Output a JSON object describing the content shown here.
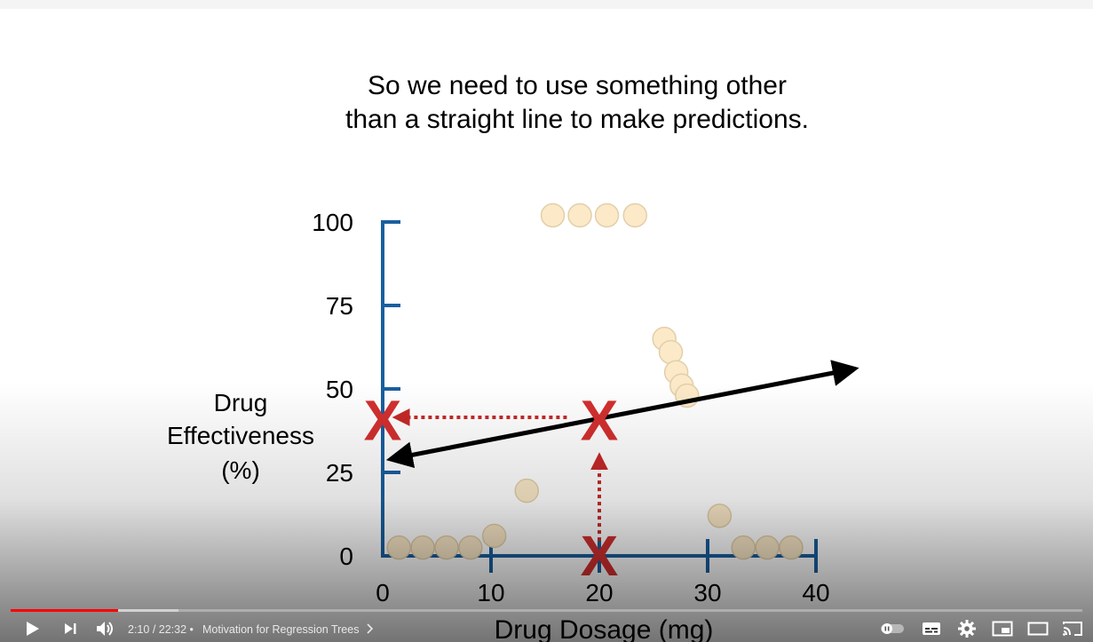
{
  "slide": {
    "title_line1": "So we need to use something other",
    "title_line2": "than a straight line to make predictions."
  },
  "chart_data": {
    "type": "scatter",
    "ylabel_lines": [
      "Drug",
      "Effectiveness",
      "(%)"
    ],
    "xlabel": "Drug Dosage (mg)",
    "x_ticks": [
      0,
      10,
      20,
      30,
      40
    ],
    "y_ticks": [
      0,
      25,
      50,
      75,
      100
    ],
    "xlim": [
      0,
      40
    ],
    "ylim": [
      0,
      100
    ],
    "points": [
      {
        "x": 1.5,
        "y": 2.5
      },
      {
        "x": 3.7,
        "y": 2.5
      },
      {
        "x": 5.9,
        "y": 2.5
      },
      {
        "x": 8.1,
        "y": 2.5
      },
      {
        "x": 10.3,
        "y": 6
      },
      {
        "x": 13.3,
        "y": 19.5
      },
      {
        "x": 15.7,
        "y": 102
      },
      {
        "x": 18.2,
        "y": 102
      },
      {
        "x": 20.7,
        "y": 102
      },
      {
        "x": 23.3,
        "y": 102
      },
      {
        "x": 26.0,
        "y": 65
      },
      {
        "x": 26.6,
        "y": 61
      },
      {
        "x": 27.1,
        "y": 55
      },
      {
        "x": 27.6,
        "y": 51
      },
      {
        "x": 28.1,
        "y": 48
      },
      {
        "x": 31.1,
        "y": 12
      },
      {
        "x": 33.3,
        "y": 2.5
      },
      {
        "x": 35.5,
        "y": 2.5
      },
      {
        "x": 37.7,
        "y": 2.5
      }
    ],
    "fit_line": {
      "x1": 0.8,
      "y1": 29,
      "x2": 43.5,
      "y2": 56
    },
    "markers": [
      {
        "label": "X",
        "x": 0,
        "y": 40.5,
        "color": "#d32f2f"
      },
      {
        "label": "X",
        "x": 20,
        "y": 40.5,
        "color": "#d32f2f"
      },
      {
        "label": "X",
        "x": 20,
        "y": 0,
        "color": "#d32f2f"
      }
    ],
    "arrows": [
      {
        "from": {
          "x": 17,
          "y": 41.5
        },
        "to": {
          "x": 1.2,
          "y": 41.5
        }
      },
      {
        "from": {
          "x": 20,
          "y": 4.5
        },
        "to": {
          "x": 20,
          "y": 30
        }
      }
    ],
    "colors": {
      "axis": "#1a5f9e",
      "point_fill": "#fbe9c8",
      "point_stroke": "#e2cfaa",
      "line": "#000000",
      "marker": "#d32f2f"
    }
  },
  "player": {
    "current_time": "2:10",
    "separator": " / ",
    "duration": "22:32",
    "bullet": "•",
    "chapter_title": "Motivation for Regression Trees",
    "played_fraction": 0.1,
    "loaded_fraction": 0.157,
    "icons": [
      "play-icon",
      "next-icon",
      "volume-icon",
      "autoplay-toggle-icon",
      "subtitles-icon",
      "settings-gear-icon",
      "miniplayer-icon",
      "theater-mode-icon",
      "cast-icon"
    ]
  }
}
